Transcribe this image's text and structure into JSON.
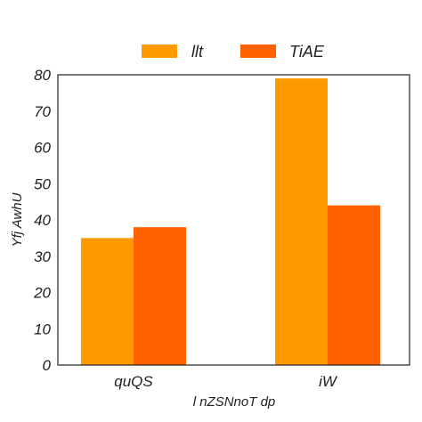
{
  "chart_data": {
    "type": "bar",
    "categories": [
      "quQS",
      "iW"
    ],
    "series": [
      {
        "name": "llt",
        "values": [
          35,
          79
        ],
        "color": "#ff9900"
      },
      {
        "name": "TiAE",
        "values": [
          38,
          44
        ],
        "color": "#ff6000"
      }
    ],
    "xlabel": "l nZSNnoT dp",
    "ylabel": "Yfj AwhU",
    "ylim": [
      0,
      80
    ],
    "yticks": [
      "0",
      "10",
      "20",
      "30",
      "40",
      "50",
      "60",
      "70",
      "80"
    ],
    "grid": false,
    "legend_position": "top-center"
  }
}
